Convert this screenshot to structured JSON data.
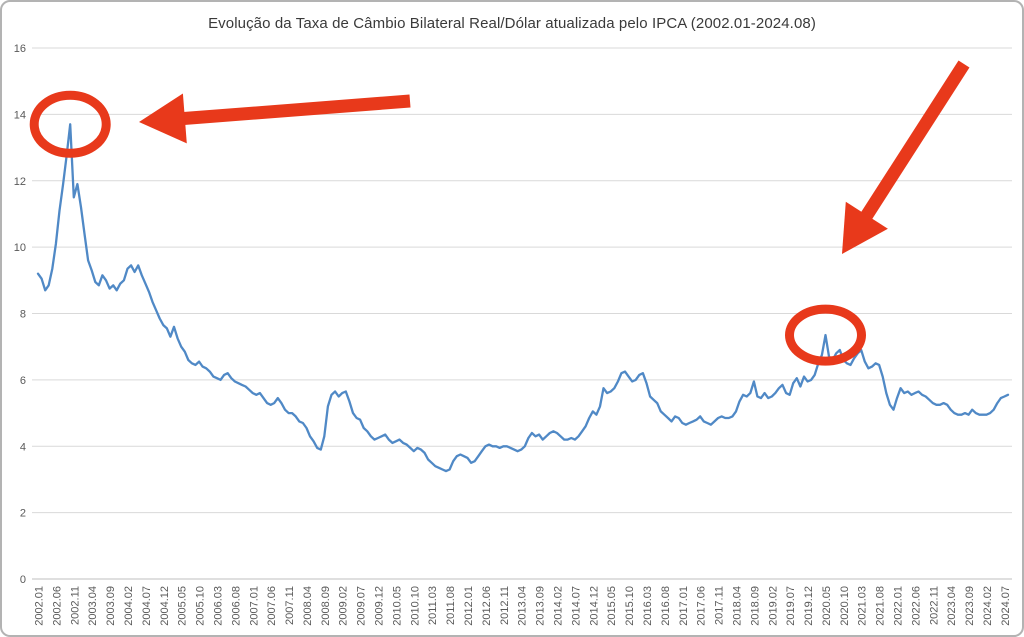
{
  "chart_data": {
    "type": "line",
    "title": "Evolução da Taxa de Câmbio Bilateral Real/Dólar atualizada pelo IPCA (2002.01-2024.08)",
    "xlabel": "",
    "ylabel": "",
    "x_start": "2002.01",
    "x_end": "2024.08",
    "ylim": [
      0,
      16
    ],
    "grid": "horizontal",
    "legend": "none",
    "y_ticks": [
      0,
      2,
      4,
      6,
      8,
      10,
      12,
      14,
      16
    ],
    "x_tick_step": 5,
    "x_tick_labels": [
      "2002.01",
      "2002.06",
      "2002.11",
      "2003.04",
      "2003.09",
      "2004.02",
      "2004.07",
      "2004.12",
      "2005.05",
      "2005.10",
      "2006.03",
      "2006.08",
      "2007.01",
      "2007.06",
      "2007.11",
      "2008.04",
      "2008.09",
      "2009.02",
      "2009.07",
      "2009.12",
      "2010.05",
      "2010.10",
      "2011.03",
      "2011.08",
      "2012.01",
      "2012.06",
      "2012.11",
      "2013.04",
      "2013.09",
      "2014.02",
      "2014.07",
      "2014.12",
      "2015.05",
      "2015.10",
      "2016.03",
      "2016.08",
      "2017.01",
      "2017.06",
      "2017.11",
      "2018.04",
      "2018.09",
      "2019.02",
      "2019.07",
      "2019.12",
      "2020.05",
      "2020.10",
      "2021.03",
      "2021.08",
      "2022.01",
      "2022.06",
      "2022.11",
      "2023.04",
      "2023.09",
      "2024.02",
      "2024.07"
    ],
    "values": [
      9.2,
      9.05,
      8.7,
      8.85,
      9.35,
      10.1,
      11.1,
      11.9,
      12.75,
      13.7,
      11.5,
      11.9,
      11.2,
      10.4,
      9.6,
      9.3,
      8.95,
      8.85,
      9.15,
      9.0,
      8.75,
      8.85,
      8.7,
      8.9,
      9.0,
      9.35,
      9.45,
      9.25,
      9.45,
      9.15,
      8.9,
      8.65,
      8.35,
      8.1,
      7.85,
      7.65,
      7.55,
      7.3,
      7.6,
      7.25,
      7.0,
      6.85,
      6.6,
      6.5,
      6.45,
      6.55,
      6.4,
      6.35,
      6.25,
      6.1,
      6.05,
      6.0,
      6.15,
      6.2,
      6.05,
      5.95,
      5.9,
      5.85,
      5.8,
      5.7,
      5.6,
      5.55,
      5.6,
      5.45,
      5.3,
      5.25,
      5.3,
      5.45,
      5.3,
      5.1,
      5.0,
      5.0,
      4.9,
      4.75,
      4.7,
      4.55,
      4.3,
      4.15,
      3.95,
      3.9,
      4.3,
      5.2,
      5.55,
      5.65,
      5.5,
      5.6,
      5.65,
      5.35,
      5.0,
      4.85,
      4.8,
      4.55,
      4.45,
      4.3,
      4.2,
      4.25,
      4.3,
      4.35,
      4.2,
      4.1,
      4.15,
      4.2,
      4.1,
      4.05,
      3.95,
      3.85,
      3.95,
      3.9,
      3.8,
      3.6,
      3.5,
      3.4,
      3.35,
      3.3,
      3.25,
      3.3,
      3.55,
      3.7,
      3.75,
      3.7,
      3.65,
      3.5,
      3.55,
      3.7,
      3.85,
      4.0,
      4.05,
      4.0,
      4.0,
      3.95,
      4.0,
      4.0,
      3.95,
      3.9,
      3.85,
      3.9,
      4.0,
      4.25,
      4.4,
      4.3,
      4.35,
      4.2,
      4.3,
      4.4,
      4.45,
      4.4,
      4.3,
      4.2,
      4.2,
      4.25,
      4.2,
      4.3,
      4.45,
      4.6,
      4.85,
      5.05,
      4.95,
      5.2,
      5.75,
      5.6,
      5.65,
      5.75,
      5.95,
      6.2,
      6.25,
      6.1,
      5.95,
      6.0,
      6.15,
      6.2,
      5.9,
      5.5,
      5.4,
      5.3,
      5.05,
      4.95,
      4.85,
      4.75,
      4.9,
      4.85,
      4.7,
      4.65,
      4.7,
      4.75,
      4.8,
      4.9,
      4.75,
      4.7,
      4.65,
      4.75,
      4.85,
      4.9,
      4.85,
      4.85,
      4.9,
      5.05,
      5.35,
      5.55,
      5.5,
      5.6,
      5.95,
      5.5,
      5.45,
      5.6,
      5.45,
      5.5,
      5.6,
      5.75,
      5.85,
      5.6,
      5.55,
      5.9,
      6.05,
      5.8,
      6.1,
      5.95,
      6.0,
      6.15,
      6.5,
      6.75,
      7.35,
      6.7,
      6.6,
      6.8,
      6.9,
      6.6,
      6.5,
      6.45,
      6.65,
      6.8,
      6.9,
      6.55,
      6.35,
      6.4,
      6.5,
      6.45,
      6.1,
      5.6,
      5.25,
      5.1,
      5.45,
      5.75,
      5.6,
      5.65,
      5.55,
      5.6,
      5.65,
      5.55,
      5.5,
      5.4,
      5.3,
      5.25,
      5.25,
      5.3,
      5.25,
      5.1,
      5.0,
      4.95,
      4.95,
      5.0,
      4.95,
      5.1,
      5.0,
      4.95,
      4.95,
      4.95,
      5.0,
      5.1,
      5.3,
      5.45,
      5.5,
      5.55
    ],
    "colors": {
      "line": "#5089C6",
      "grid": "#D9D9D9",
      "axis": "#BFBFBF",
      "tick_text": "#595959",
      "title_text": "#3A3A3A",
      "annotation": "#E8391B"
    },
    "annotations": {
      "color": "#E8391B",
      "circles": [
        {
          "name": "peak-2002-circle",
          "month": "2002.10",
          "value": 13.7,
          "rx": 36,
          "ry": 29
        },
        {
          "name": "peak-2020-circle",
          "month": "2020.05",
          "value": 7.35,
          "rx": 36,
          "ry": 26
        }
      ],
      "arrows": [
        {
          "name": "peak-2002-arrow",
          "tail": [
            408,
            99
          ],
          "tip": [
            137,
            120
          ]
        },
        {
          "name": "peak-2020-arrow",
          "tail": [
            962,
            62
          ],
          "tip": [
            840,
            252
          ]
        }
      ]
    }
  }
}
